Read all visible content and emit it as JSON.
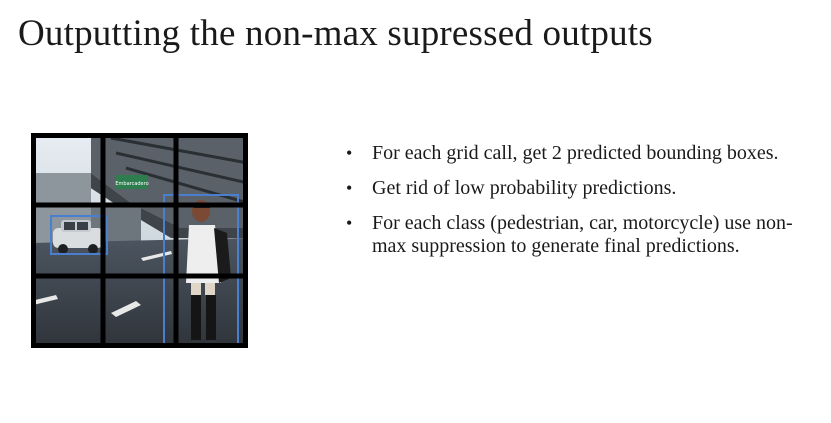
{
  "slide": {
    "title": "Outputting the non-max supressed outputs",
    "bullets": [
      {
        "text": "For each grid call, get 2 predicted bounding boxes."
      },
      {
        "text": "Get rid of low probability predictions."
      },
      {
        "text": "For each class (pedestrian, car, motorcycle) use non-max suppression to generate final predictions."
      }
    ]
  },
  "figure": {
    "grid_rows": 3,
    "grid_cols": 3,
    "grid_color": "#000000",
    "box_color": "#4a7fd0",
    "sign_text": "Embarcadero",
    "objects": [
      "car",
      "pedestrian"
    ]
  }
}
